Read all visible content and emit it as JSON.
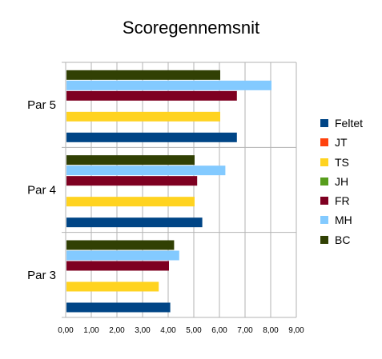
{
  "chart_data": {
    "type": "bar",
    "orientation": "horizontal",
    "title": "Scoregennemsnit",
    "xlabel": "",
    "ylabel": "",
    "xlim": [
      0,
      9
    ],
    "x_ticks": [
      "0,00",
      "1,00",
      "2,00",
      "3,00",
      "4,00",
      "5,00",
      "6,00",
      "7,00",
      "8,00",
      "9,00"
    ],
    "categories": [
      "Par 3",
      "Par 4",
      "Par 5"
    ],
    "grid": true,
    "legend_position": "right",
    "series": [
      {
        "name": "Feltet",
        "color": "#004586",
        "values": [
          4.05,
          5.3,
          6.65
        ]
      },
      {
        "name": "JT",
        "color": "#FF420E",
        "values": [
          0,
          0,
          0
        ]
      },
      {
        "name": "TS",
        "color": "#FFD320",
        "values": [
          3.6,
          5.0,
          6.0
        ]
      },
      {
        "name": "JH",
        "color": "#579D1C",
        "values": [
          0,
          0,
          0
        ]
      },
      {
        "name": "FR",
        "color": "#7E0021",
        "values": [
          4.0,
          5.1,
          6.65
        ]
      },
      {
        "name": "MH",
        "color": "#83CAFF",
        "values": [
          4.4,
          6.2,
          8.0
        ]
      },
      {
        "name": "BC",
        "color": "#314004",
        "values": [
          4.2,
          5.0,
          6.0
        ]
      }
    ]
  }
}
